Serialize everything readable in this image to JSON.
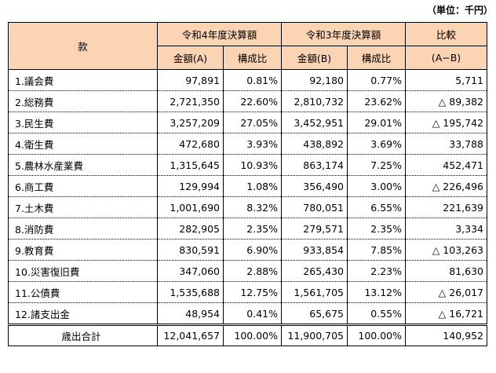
{
  "unit_note": "（単位：千円）",
  "header": {
    "category": "款",
    "r4_group": "令和4年度決算額",
    "r3_group": "令和3年度決算額",
    "diff_group": "比較",
    "r4_amount": "金額(A)",
    "r4_ratio": "構成比",
    "r3_amount": "金額(B)",
    "r3_ratio": "構成比",
    "diff_formula": "(A−B)"
  },
  "rows": [
    {
      "name": "1.議会費",
      "r4_amount": "97,891",
      "r4_ratio": "0.81%",
      "r3_amount": "92,180",
      "r3_ratio": "0.77%",
      "diff": "5,711"
    },
    {
      "name": "2.総務費",
      "r4_amount": "2,721,350",
      "r4_ratio": "22.60%",
      "r3_amount": "2,810,732",
      "r3_ratio": "23.62%",
      "diff": "△ 89,382"
    },
    {
      "name": "3.民生費",
      "r4_amount": "3,257,209",
      "r4_ratio": "27.05%",
      "r3_amount": "3,452,951",
      "r3_ratio": "29.01%",
      "diff": "△ 195,742"
    },
    {
      "name": "4.衛生費",
      "r4_amount": "472,680",
      "r4_ratio": "3.93%",
      "r3_amount": "438,892",
      "r3_ratio": "3.69%",
      "diff": "33,788"
    },
    {
      "name": "5.農林水産業費",
      "r4_amount": "1,315,645",
      "r4_ratio": "10.93%",
      "r3_amount": "863,174",
      "r3_ratio": "7.25%",
      "diff": "452,471"
    },
    {
      "name": "6.商工費",
      "r4_amount": "129,994",
      "r4_ratio": "1.08%",
      "r3_amount": "356,490",
      "r3_ratio": "3.00%",
      "diff": "△ 226,496"
    },
    {
      "name": "7.土木費",
      "r4_amount": "1,001,690",
      "r4_ratio": "8.32%",
      "r3_amount": "780,051",
      "r3_ratio": "6.55%",
      "diff": "221,639"
    },
    {
      "name": "8.消防費",
      "r4_amount": "282,905",
      "r4_ratio": "2.35%",
      "r3_amount": "279,571",
      "r3_ratio": "2.35%",
      "diff": "3,334"
    },
    {
      "name": "9.教育費",
      "r4_amount": "830,591",
      "r4_ratio": "6.90%",
      "r3_amount": "933,854",
      "r3_ratio": "7.85%",
      "diff": "△ 103,263"
    },
    {
      "name": "10.災害復旧費",
      "r4_amount": "347,060",
      "r4_ratio": "2.88%",
      "r3_amount": "265,430",
      "r3_ratio": "2.23%",
      "diff": "81,630"
    },
    {
      "name": "11.公債費",
      "r4_amount": "1,535,688",
      "r4_ratio": "12.75%",
      "r3_amount": "1,561,705",
      "r3_ratio": "13.12%",
      "diff": "△ 26,017"
    },
    {
      "name": "12.諸支出金",
      "r4_amount": "48,954",
      "r4_ratio": "0.41%",
      "r3_amount": "65,675",
      "r3_ratio": "0.55%",
      "diff": "△ 16,721"
    }
  ],
  "total": {
    "name": "歳出合計",
    "r4_amount": "12,041,657",
    "r4_ratio": "100.00%",
    "r3_amount": "11,900,705",
    "r3_ratio": "100.00%",
    "diff": "140,952"
  }
}
